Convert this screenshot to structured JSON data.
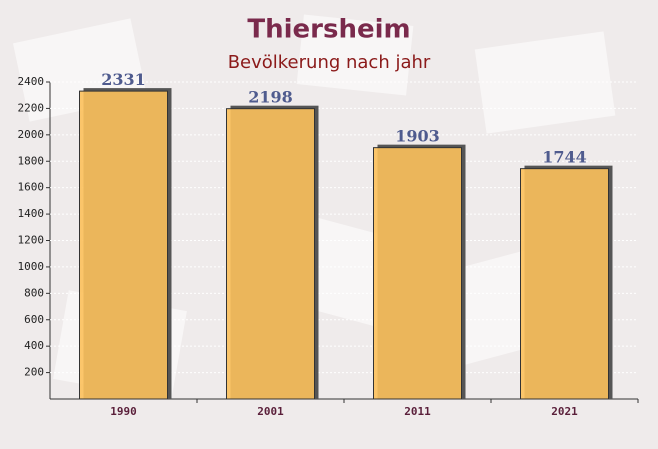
{
  "chart_data": {
    "type": "bar",
    "title": "Thiersheim",
    "subtitle": "Bevölkerung nach jahr",
    "categories": [
      "1990",
      "2001",
      "2011",
      "2021"
    ],
    "values": [
      2331,
      2198,
      1903,
      1744
    ],
    "color": "#fcc15c",
    "ylim": [
      0,
      2400
    ],
    "yticks": [
      200,
      400,
      600,
      800,
      1000,
      1200,
      1400,
      1600,
      1800,
      2000,
      2200,
      2400
    ]
  }
}
